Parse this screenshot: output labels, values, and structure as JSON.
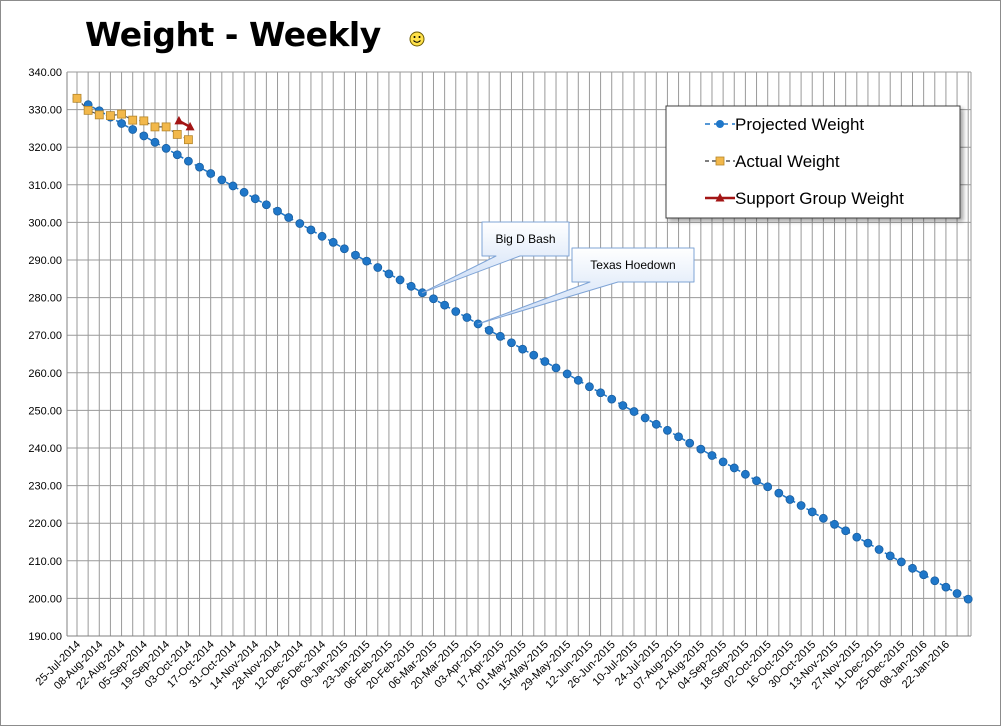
{
  "chart_data": {
    "type": "line",
    "title": "Weight - Weekly",
    "title_icon": "smiley-face-icon",
    "xlabel": "",
    "ylabel": "",
    "ylim": [
      190,
      340
    ],
    "y_ticks": [
      "190.00",
      "200.00",
      "210.00",
      "220.00",
      "230.00",
      "240.00",
      "250.00",
      "260.00",
      "270.00",
      "280.00",
      "290.00",
      "300.00",
      "310.00",
      "320.00",
      "330.00",
      "340.00"
    ],
    "x_tick_labels": [
      "25-Jul-2014",
      "08-Aug-2014",
      "22-Aug-2014",
      "05-Sep-2014",
      "19-Sep-2014",
      "03-Oct-2014",
      "17-Oct-2014",
      "31-Oct-2014",
      "14-Nov-2014",
      "28-Nov-2014",
      "12-Dec-2014",
      "26-Dec-2014",
      "09-Jan-2015",
      "23-Jan-2015",
      "06-Feb-2015",
      "20-Feb-2015",
      "06-Mar-2015",
      "20-Mar-2015",
      "03-Apr-2015",
      "17-Apr-2015",
      "01-May-2015",
      "15-May-2015",
      "29-May-2015",
      "12-Jun-2015",
      "26-Jun-2015",
      "10-Jul-2015",
      "24-Jul-2015",
      "07-Aug-2015",
      "21-Aug-2015",
      "04-Sep-2015",
      "18-Sep-2015",
      "02-Oct-2015",
      "16-Oct-2015",
      "30-Oct-2015",
      "13-Nov-2015",
      "27-Nov-2015",
      "11-Dec-2015",
      "25-Dec-2015",
      "08-Jan-2016",
      "22-Jan-2016"
    ],
    "x_start": "25-Jul-2014",
    "x_end": "29-Jan-2016",
    "grid": true,
    "legend_position": "top-right",
    "series": [
      {
        "name": "Projected Weight",
        "color": "#1f77c9",
        "marker": "circle",
        "start_value": 333.0,
        "end_value": 199.8,
        "weeks": 80,
        "values": [
          333.0,
          331.3,
          329.7,
          328.0,
          326.3,
          324.7,
          323.0,
          321.3,
          319.7,
          318.0,
          316.3,
          314.7,
          313.0,
          311.3,
          309.7,
          308.0,
          306.3,
          304.7,
          303.0,
          301.3,
          299.7,
          298.0,
          296.3,
          294.7,
          293.0,
          291.3,
          289.7,
          288.0,
          286.3,
          284.7,
          283.0,
          281.3,
          279.7,
          278.0,
          276.3,
          274.7,
          273.0,
          271.3,
          269.7,
          268.0,
          266.3,
          264.7,
          263.0,
          261.3,
          259.7,
          258.0,
          256.3,
          254.7,
          253.0,
          251.3,
          249.7,
          248.0,
          246.3,
          244.7,
          243.0,
          241.3,
          239.7,
          238.0,
          236.3,
          234.7,
          233.0,
          231.3,
          229.7,
          228.0,
          226.3,
          224.7,
          223.0,
          221.3,
          219.7,
          218.0,
          216.3,
          214.7,
          213.0,
          211.3,
          209.7,
          208.0,
          206.3,
          204.7,
          203.0,
          201.3,
          199.8
        ]
      },
      {
        "name": "Actual Weight",
        "color": "#f2b84b",
        "marker": "square",
        "values": [
          333.0,
          329.8,
          328.6,
          328.4,
          328.8,
          327.2,
          327.0,
          325.4,
          325.4,
          323.4,
          322.0
        ]
      },
      {
        "name": "Support Group Weight",
        "color": "#a31515",
        "marker": "triangle",
        "start_week": 9,
        "values": [
          327.0,
          325.4
        ]
      }
    ],
    "annotations": [
      {
        "text": "Big D Bash",
        "week": 31
      },
      {
        "text": "Texas Hoedown",
        "week": 36
      }
    ]
  }
}
